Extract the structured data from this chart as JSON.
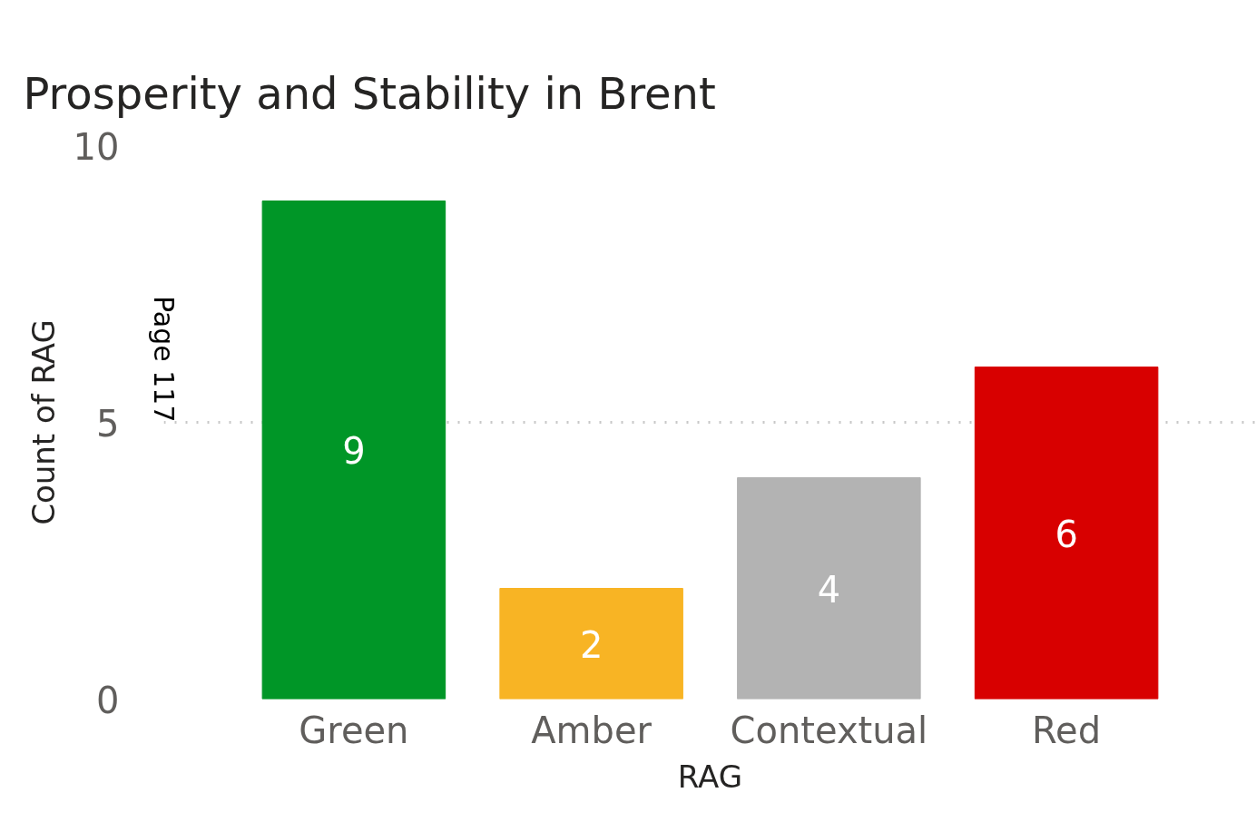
{
  "chart_data": {
    "type": "bar",
    "title": "Prosperity and Stability in Brent",
    "xlabel": "RAG",
    "ylabel": "Count of RAG",
    "categories": [
      "Green",
      "Amber",
      "Contextual",
      "Red"
    ],
    "values": [
      9,
      2,
      4,
      6
    ],
    "colors": [
      "#009627",
      "#f8b424",
      "#b3b3b3",
      "#d80000"
    ],
    "ylim": [
      0,
      10
    ],
    "yticks": [
      0,
      5,
      10
    ],
    "grid": "y",
    "data_labels": true,
    "annotations": [
      "Page 117"
    ]
  }
}
